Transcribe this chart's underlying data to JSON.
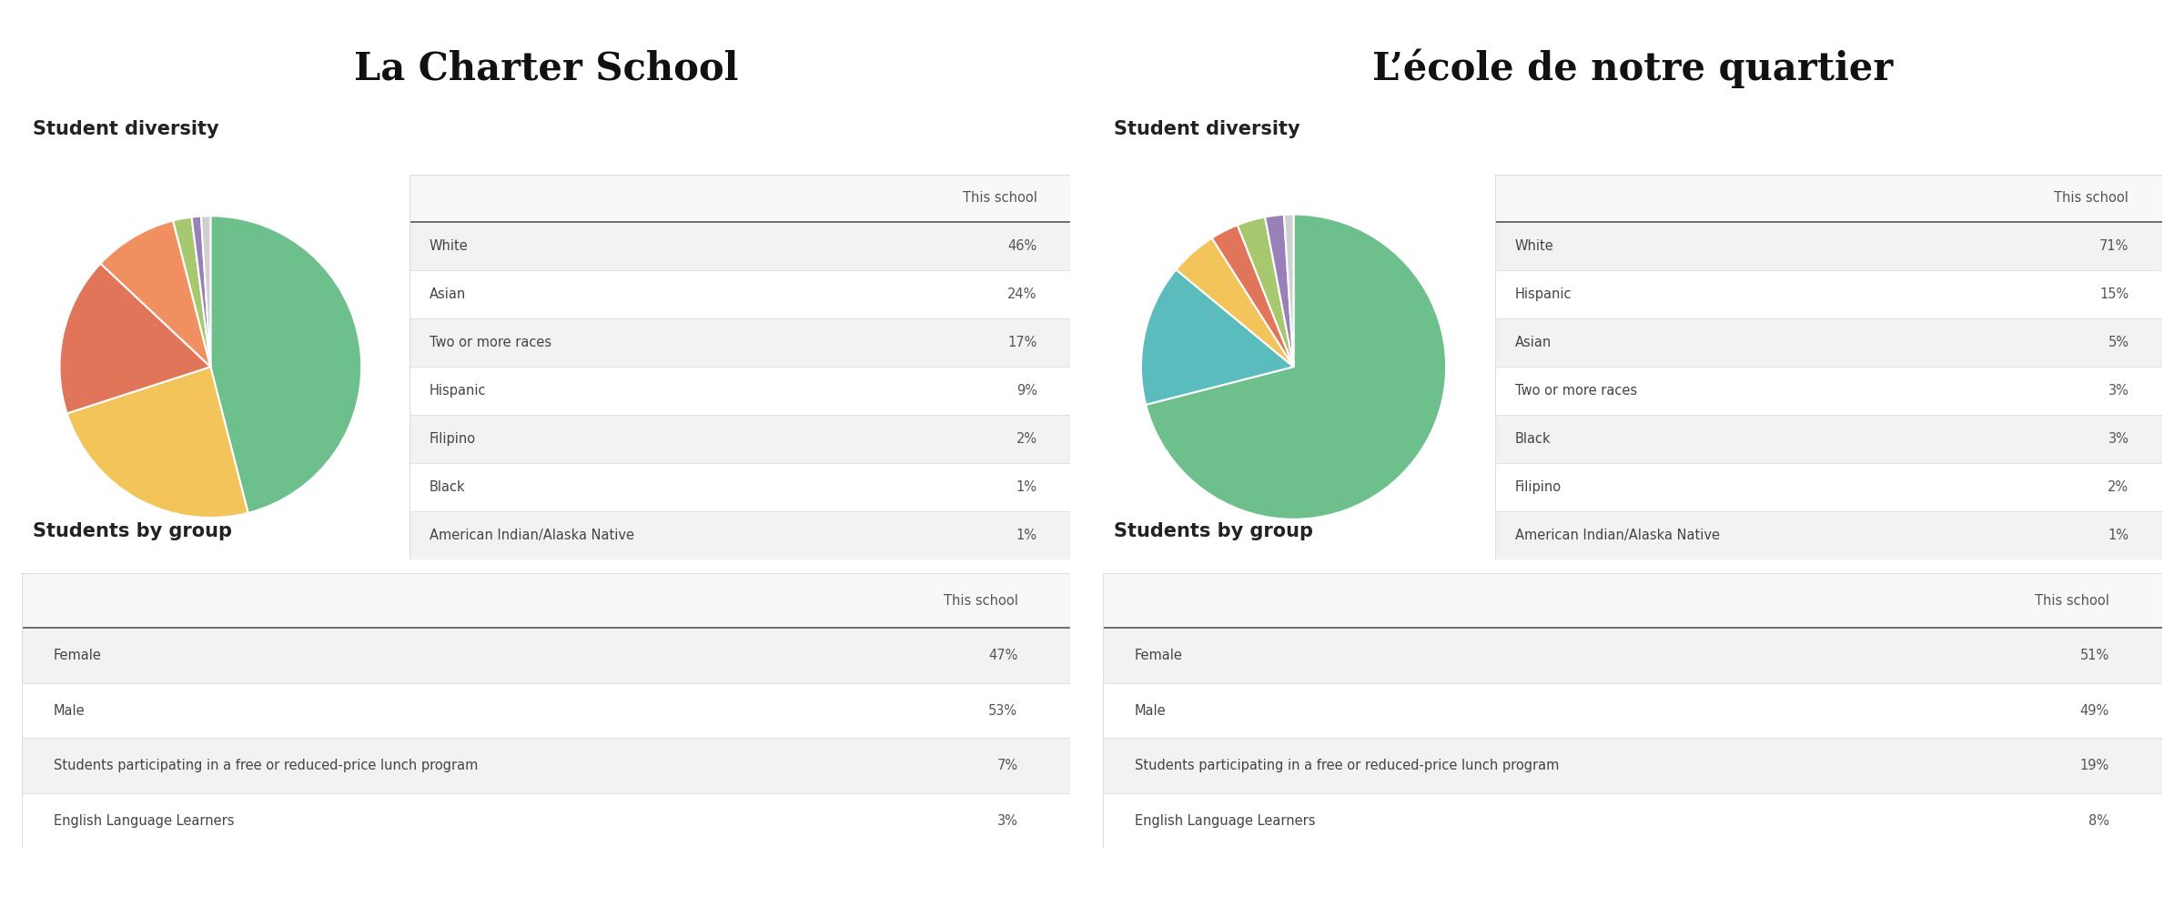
{
  "title1": "La Charter School",
  "title2": "L’école de notre quartier",
  "section_diversity": "Student diversity",
  "section_group": "Students by group",
  "col_header": "This school",
  "school1": {
    "diversity_labels": [
      "White",
      "Asian",
      "Two or more races",
      "Hispanic",
      "Filipino",
      "Black",
      "American Indian/Alaska Native"
    ],
    "diversity_values": [
      "46%",
      "24%",
      "17%",
      "9%",
      "2%",
      "1%",
      "1%"
    ],
    "diversity_numbers": [
      46,
      24,
      17,
      9,
      2,
      1,
      1
    ],
    "pie_colors": [
      "#6dbf8b",
      "#f2c45a",
      "#e0755a",
      "#f09060",
      "#a8c870",
      "#9980b8",
      "#d0d0d0"
    ],
    "group_labels": [
      "Female",
      "Male",
      "Students participating in a free or reduced-price lunch program",
      "English Language Learners"
    ],
    "group_values": [
      "47%",
      "53%",
      "7%",
      "3%"
    ]
  },
  "school2": {
    "diversity_labels": [
      "White",
      "Hispanic",
      "Asian",
      "Two or more races",
      "Black",
      "Filipino",
      "American Indian/Alaska Native"
    ],
    "diversity_values": [
      "71%",
      "15%",
      "5%",
      "3%",
      "3%",
      "2%",
      "1%"
    ],
    "diversity_numbers": [
      71,
      15,
      5,
      3,
      3,
      2,
      1
    ],
    "pie_colors": [
      "#6dbf8b",
      "#5bbcbe",
      "#f2c45a",
      "#e0755a",
      "#a8c870",
      "#9980b8",
      "#d0d0d0"
    ],
    "group_labels": [
      "Female",
      "Male",
      "Students participating in a free or reduced-price lunch program",
      "English Language Learners"
    ],
    "group_values": [
      "51%",
      "49%",
      "19%",
      "8%"
    ]
  },
  "bg_color": "#ffffff",
  "table_header_bg": "#f8f8f8",
  "table_row_even_bg": "#f2f2f2",
  "table_row_odd_bg": "#ffffff",
  "table_border_light": "#dddddd",
  "table_border_dark": "#555555",
  "title_fontsize": 30,
  "section_fontsize": 15,
  "table_fontsize": 10.5,
  "header_fontsize": 10.5
}
